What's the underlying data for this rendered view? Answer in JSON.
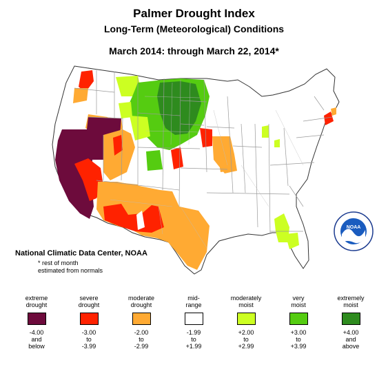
{
  "title": "Palmer Drought Index",
  "subtitle": "Long-Term (Meteorological) Conditions",
  "period": "March 2014: through March 22, 2014*",
  "credit": "National Climatic Data Center, NOAA",
  "note_line1": "* rest of month",
  "note_line2": "estimated from normals",
  "logo_text": "NOAA",
  "colors": {
    "extreme_drought": "#6d0b3c",
    "severe_drought": "#ff2200",
    "moderate_drought": "#ffaa33",
    "mid_range": "#ffffff",
    "moderately_moist": "#ccff22",
    "very_moist": "#55cc11",
    "extremely_moist": "#2e8b1e",
    "state_border": "#999999",
    "outline": "#333333"
  },
  "legend": [
    {
      "label1": "extreme",
      "label2": "drought",
      "r1": "-4.00",
      "r2": "and",
      "r3": "below",
      "color": "#6d0b3c"
    },
    {
      "label1": "severe",
      "label2": "drought",
      "r1": "-3.00",
      "r2": "to",
      "r3": "-3.99",
      "color": "#ff2200"
    },
    {
      "label1": "moderate",
      "label2": "drought",
      "r1": "-2.00",
      "r2": "to",
      "r3": "-2.99",
      "color": "#ffaa33"
    },
    {
      "label1": "mid-",
      "label2": "range",
      "r1": "-1.99",
      "r2": "to",
      "r3": "+1.99",
      "color": "#ffffff"
    },
    {
      "label1": "moderately",
      "label2": "moist",
      "r1": "+2.00",
      "r2": "to",
      "r3": "+2.99",
      "color": "#ccff22"
    },
    {
      "label1": "very",
      "label2": "moist",
      "r1": "+3.00",
      "r2": "to",
      "r3": "+3.99",
      "color": "#55cc11"
    },
    {
      "label1": "extremely",
      "label2": "moist",
      "r1": "+4.00",
      "r2": "and",
      "r3": "above",
      "color": "#2e8b1e"
    }
  ]
}
